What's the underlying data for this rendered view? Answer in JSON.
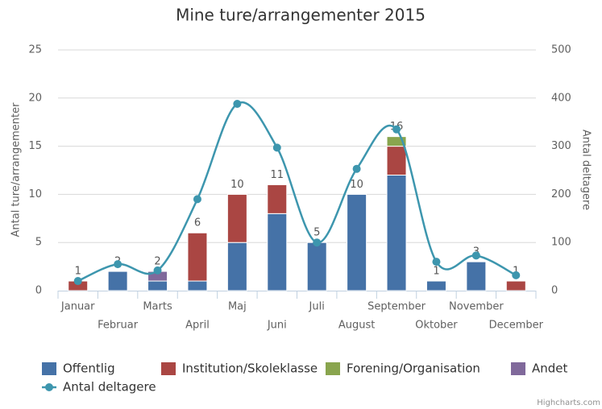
{
  "chart_data": {
    "type": "bar",
    "stacked": true,
    "title": "Mine ture/arrangementer 2015",
    "y_label": "Antal ture/arrangementer",
    "y2_label": "Antal deltagere",
    "credits": "Highcharts.com",
    "categories": [
      "Januar",
      "Februar",
      "Marts",
      "April",
      "Maj",
      "Juni",
      "Juli",
      "August",
      "September",
      "Oktober",
      "November",
      "December"
    ],
    "series": [
      {
        "name": "Offentlig",
        "color": "#4572a7",
        "values": [
          null,
          2,
          1,
          1,
          5,
          8,
          5,
          10,
          12,
          1,
          3,
          null
        ]
      },
      {
        "name": "Institution/Skoleklasse",
        "color": "#aa4643",
        "values": [
          1,
          null,
          null,
          5,
          5,
          3,
          null,
          null,
          3,
          null,
          null,
          1
        ]
      },
      {
        "name": "Forening/Organisation",
        "color": "#89a54e",
        "values": [
          null,
          null,
          null,
          null,
          null,
          null,
          null,
          null,
          1,
          null,
          null,
          null
        ]
      },
      {
        "name": "Andet",
        "color": "#80699b",
        "values": [
          null,
          null,
          1,
          null,
          null,
          null,
          null,
          null,
          null,
          null,
          null,
          null
        ]
      },
      {
        "name": "Antal deltagere",
        "type": "spline",
        "axis": "y2",
        "color": "#3d96ae",
        "values": [
          20,
          55,
          42,
          190,
          388,
          297,
          100,
          253,
          335,
          60,
          73,
          32
        ]
      }
    ],
    "stack_labels": [
      1,
      2,
      2,
      6,
      10,
      11,
      5,
      10,
      16,
      1,
      3,
      1
    ],
    "ylim": [
      0,
      25
    ],
    "yticks": [
      0,
      5,
      10,
      15,
      20,
      25
    ],
    "y2lim": [
      0,
      500
    ],
    "y2ticks": [
      0,
      100,
      200,
      300,
      400,
      500
    ],
    "grid": true
  }
}
